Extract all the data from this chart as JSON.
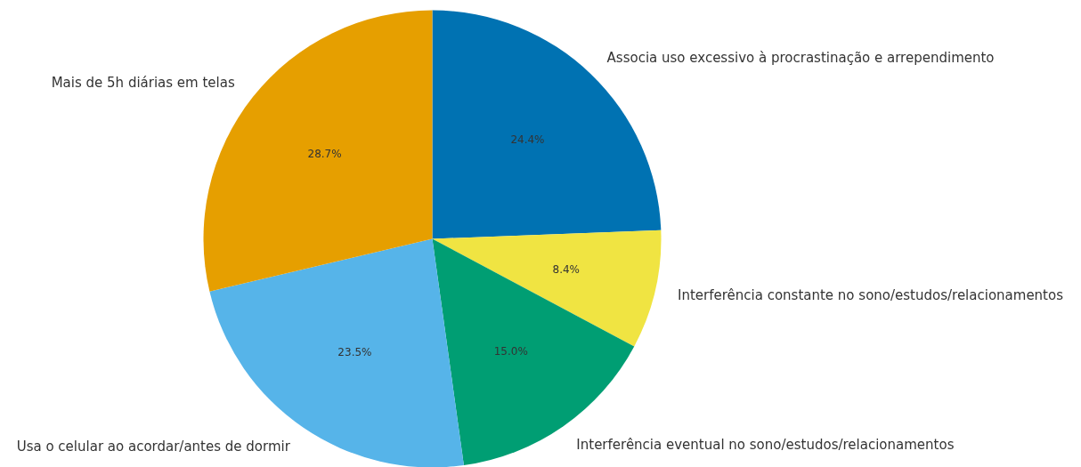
{
  "chart_data": {
    "type": "pie",
    "categories": [
      "Associa uso excessivo à procrastinação e arrependimento",
      "Interferência constante no sono/estudos/relacionamentos",
      "Interferência eventual no sono/estudos/relacionamentos",
      "Usa o celular ao acordar/antes de dormir",
      "Mais de 5h diárias em telas"
    ],
    "values": [
      24.4,
      8.4,
      15.0,
      23.5,
      28.7
    ],
    "colors": [
      "#0072b2",
      "#f0e442",
      "#009e73",
      "#56b4e9",
      "#e69f00"
    ],
    "value_labels": [
      "24.4%",
      "8.4%",
      "15.0%",
      "23.5%",
      "28.7%"
    ]
  }
}
